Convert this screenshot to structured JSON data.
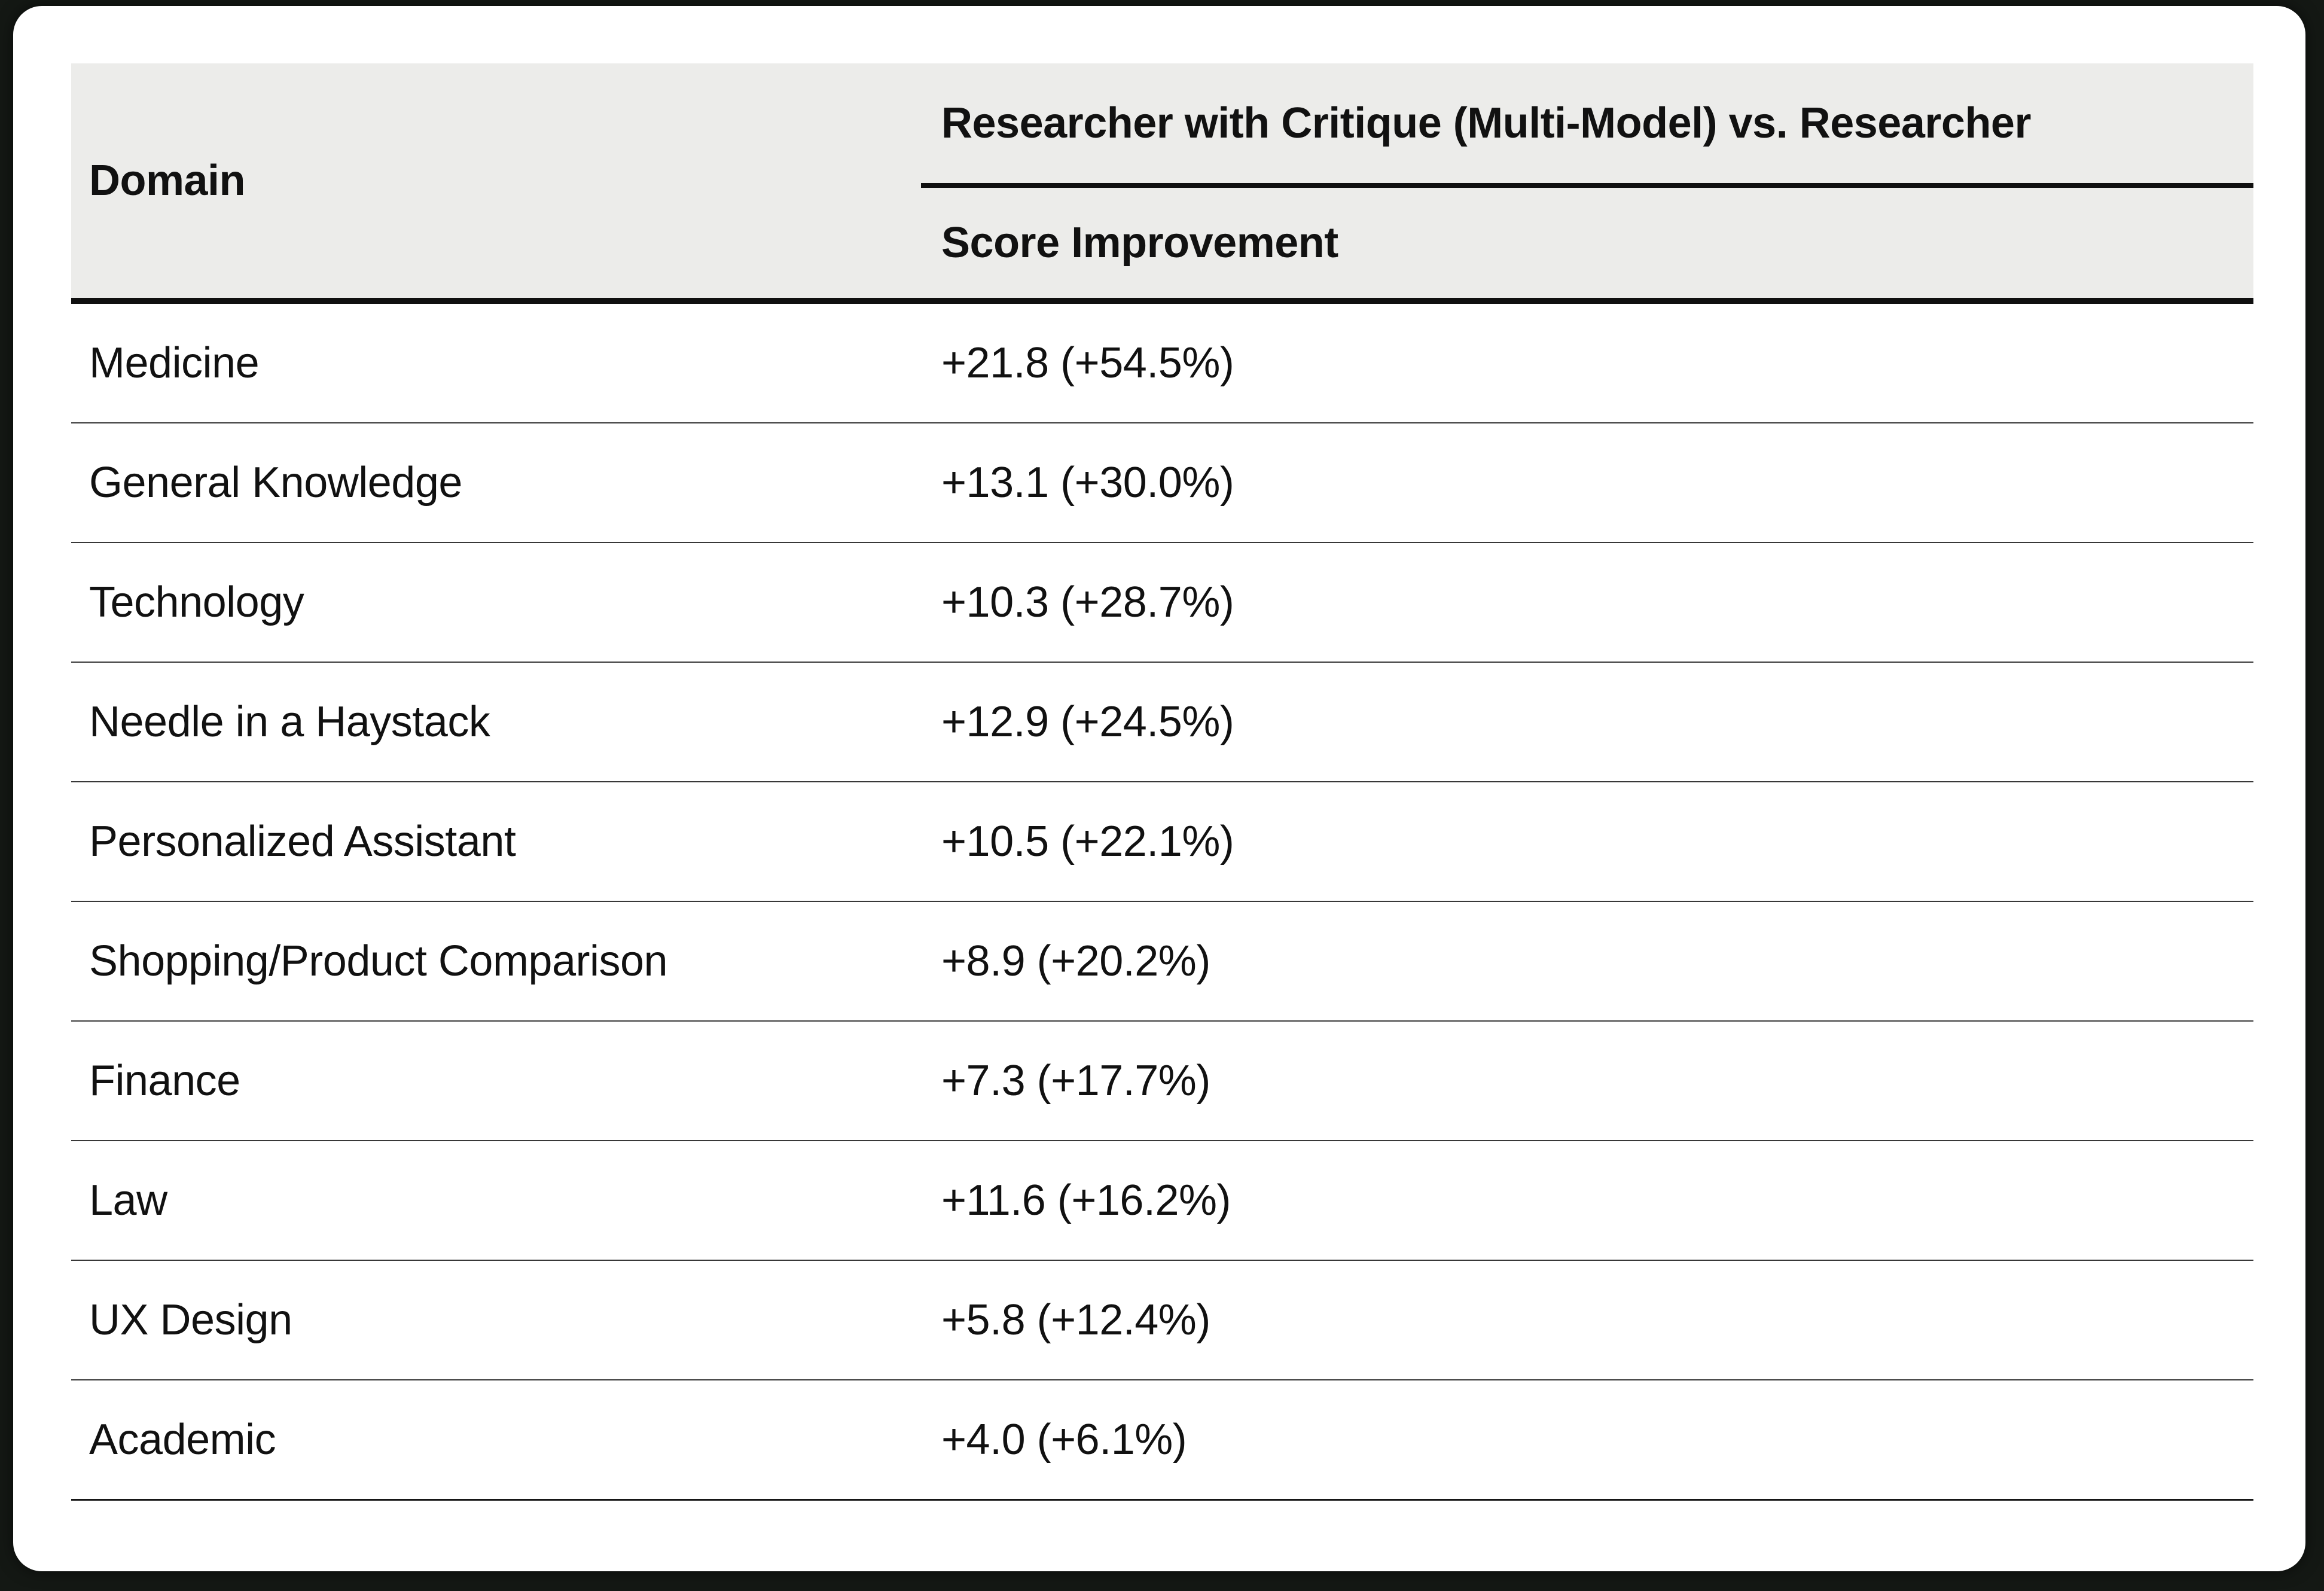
{
  "table": {
    "col1_header": "Domain",
    "col2_group_header": "Researcher with Critique (Multi-Model) vs. Researcher",
    "col2_sub_header": "Score Improvement",
    "rows": [
      {
        "domain": "Medicine",
        "improvement": "+21.8 (+54.5%)"
      },
      {
        "domain": "General Knowledge",
        "improvement": "+13.1 (+30.0%)"
      },
      {
        "domain": "Technology",
        "improvement": "+10.3 (+28.7%)"
      },
      {
        "domain": "Needle in a Haystack",
        "improvement": "+12.9 (+24.5%)"
      },
      {
        "domain": "Personalized Assistant",
        "improvement": "+10.5 (+22.1%)"
      },
      {
        "domain": "Shopping/Product Comparison",
        "improvement": "+8.9 (+20.2%)"
      },
      {
        "domain": "Finance",
        "improvement": "+7.3 (+17.7%)"
      },
      {
        "domain": "Law",
        "improvement": "+11.6 (+16.2%)"
      },
      {
        "domain": "UX Design",
        "improvement": "+5.8 (+12.4%)"
      },
      {
        "domain": "Academic",
        "improvement": "+4.0 (+6.1%)"
      }
    ],
    "colors": {
      "page_background": "#141814",
      "card_background": "#FFFFFF",
      "header_background": "#ECECEA",
      "text": "#111111",
      "rule_heavy": "#101010",
      "rule_light": "#383838"
    }
  }
}
